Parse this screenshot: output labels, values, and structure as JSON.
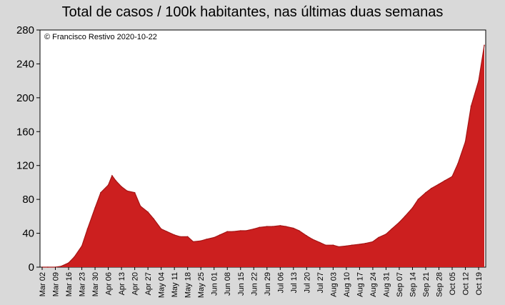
{
  "chart_data": {
    "type": "area",
    "title": "Total de casos / 100k habitantes, nas últimas duas semanas",
    "annotation": "© Francisco Restivo 2020-10-22",
    "xlabel": "",
    "ylabel": "",
    "ylim": [
      0,
      280
    ],
    "y_ticks": [
      0,
      40,
      80,
      120,
      160,
      200,
      240,
      280
    ],
    "grid": false,
    "legend": "none",
    "fill_color": "#cc1f1f",
    "line_color": "#a51414",
    "background": "#ffffff",
    "x_tick_labels": [
      "Mar 02",
      "Mar 09",
      "Mar 16",
      "Mar 23",
      "Mar 30",
      "Apr 06",
      "Apr 13",
      "Apr 20",
      "Apr 27",
      "May 04",
      "May 11",
      "May 18",
      "May 25",
      "Jun 01",
      "Jun 08",
      "Jun 15",
      "Jun 22",
      "Jun 29",
      "Jul 06",
      "Jul 13",
      "Jul 20",
      "Jul 27",
      "Aug 03",
      "Aug 10",
      "Aug 17",
      "Aug 24",
      "Aug 31",
      "Sep 07",
      "Sep 14",
      "Sep 21",
      "Sep 28",
      "Oct 05",
      "Oct 12",
      "Oct 19"
    ],
    "x": [
      "Mar 02",
      "Mar 05",
      "Mar 09",
      "Mar 12",
      "Mar 16",
      "Mar 19",
      "Mar 23",
      "Mar 26",
      "Mar 30",
      "Apr 02",
      "Apr 06",
      "Apr 08",
      "Apr 10",
      "Apr 13",
      "Apr 16",
      "Apr 20",
      "Apr 23",
      "Apr 27",
      "Apr 30",
      "May 04",
      "May 07",
      "May 11",
      "May 14",
      "May 18",
      "May 21",
      "May 25",
      "May 28",
      "Jun 01",
      "Jun 04",
      "Jun 08",
      "Jun 11",
      "Jun 15",
      "Jun 18",
      "Jun 22",
      "Jun 25",
      "Jun 29",
      "Jul 02",
      "Jul 06",
      "Jul 09",
      "Jul 13",
      "Jul 16",
      "Jul 20",
      "Jul 23",
      "Jul 27",
      "Jul 30",
      "Aug 03",
      "Aug 06",
      "Aug 10",
      "Aug 13",
      "Aug 17",
      "Aug 20",
      "Aug 24",
      "Aug 27",
      "Aug 31",
      "Sep 03",
      "Sep 07",
      "Sep 10",
      "Sep 14",
      "Sep 17",
      "Sep 21",
      "Sep 24",
      "Sep 28",
      "Oct 01",
      "Oct 05",
      "Oct 08",
      "Oct 12",
      "Oct 15",
      "Oct 19",
      "Oct 22"
    ],
    "values": [
      0,
      0,
      0,
      1,
      5,
      12,
      25,
      45,
      70,
      88,
      97,
      108,
      102,
      95,
      90,
      88,
      72,
      65,
      57,
      45,
      42,
      38,
      36,
      36,
      30,
      31,
      33,
      35,
      38,
      42,
      42,
      43,
      43,
      45,
      47,
      48,
      48,
      49,
      48,
      46,
      43,
      37,
      33,
      29,
      26,
      26,
      24,
      25,
      26,
      27,
      28,
      30,
      35,
      39,
      45,
      53,
      60,
      70,
      80,
      88,
      93,
      98,
      102,
      107,
      122,
      148,
      190,
      220,
      262
    ]
  }
}
